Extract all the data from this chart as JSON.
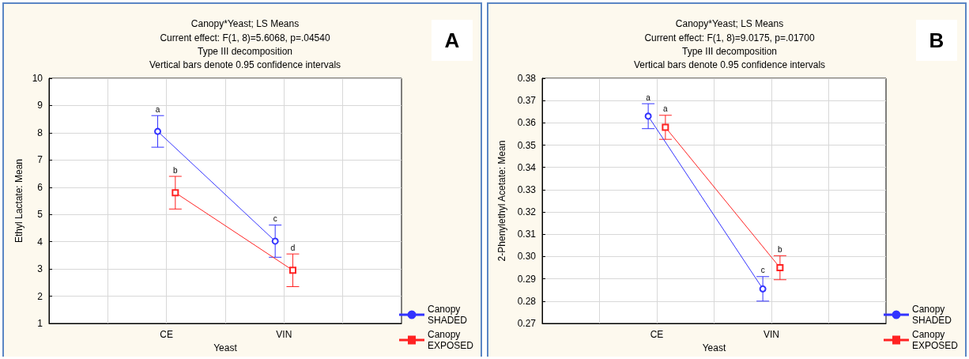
{
  "chart_data": [
    {
      "type": "line",
      "title": "Canopy*Yeast; LS Means",
      "subtitle": "Current effect: F(1, 8)=5.6068, p=.04540\nType III decomposition\nVertical bars denote 0.95 confidence intervals",
      "xlabel": "Yeast",
      "ylabel": "Ethyl Lactate: Mean",
      "categories": [
        "CE",
        "VIN"
      ],
      "series": [
        {
          "name": "Canopy SHADED",
          "color": "#3333ff",
          "marker": "circle",
          "values": [
            8.05,
            4.02
          ],
          "errors": [
            0.58,
            0.59
          ]
        },
        {
          "name": "Canopy EXPOSED",
          "color": "#ff2222",
          "marker": "square",
          "values": [
            5.8,
            2.95
          ],
          "errors": [
            0.6,
            0.6
          ]
        }
      ],
      "ylim": [
        1,
        10
      ],
      "yticks": [
        1,
        2,
        3,
        4,
        5,
        6,
        7,
        8,
        9,
        10
      ],
      "grid": true,
      "legend": "bottom right",
      "line_style": "solid",
      "annotations": [
        "A",
        {
          "text": "a",
          "x": "CE",
          "y": 8.63
        },
        {
          "text": "b",
          "x": "CE",
          "y": 6.4
        },
        {
          "text": "c",
          "x": "VIN",
          "y": 4.61
        },
        {
          "text": "d",
          "x": "VIN",
          "y": 3.55
        }
      ]
    },
    {
      "type": "line",
      "title": "Canopy*Yeast; LS Means",
      "subtitle": "Current effect: F(1, 8)=9.0175, p=.01700\nType III decomposition\nVertical bars denote 0.95 confidence intervals",
      "xlabel": "Yeast",
      "ylabel": "2-Phenylethyl Acetate: Mean",
      "categories": [
        "CE",
        "VIN"
      ],
      "series": [
        {
          "name": "Canopy SHADED",
          "color": "#3333ff",
          "marker": "circle",
          "values": [
            0.363,
            0.2855
          ],
          "errors": [
            0.0056,
            0.0055
          ]
        },
        {
          "name": "Canopy EXPOSED",
          "color": "#ff2222",
          "marker": "square",
          "values": [
            0.358,
            0.295
          ],
          "errors": [
            0.0054,
            0.0054
          ]
        }
      ],
      "ylim": [
        0.27,
        0.38
      ],
      "yticks": [
        {
          "value": 0.27,
          "label": "0.27"
        },
        {
          "value": 0.28,
          "label": "0.28"
        },
        {
          "value": 0.29,
          "label": "0.29"
        },
        {
          "value": 0.3,
          "label": "0.30"
        },
        {
          "value": 0.31,
          "label": "0.31"
        },
        {
          "value": 0.32,
          "label": "0.32"
        },
        {
          "value": 0.33,
          "label": "0.33"
        },
        {
          "value": 0.34,
          "label": "0.34"
        },
        {
          "value": 0.35,
          "label": "0.35"
        },
        {
          "value": 0.36,
          "label": "0.36"
        },
        {
          "value": 0.37,
          "label": "0.37"
        },
        {
          "value": 0.38,
          "label": "0.38"
        }
      ],
      "grid": true,
      "legend": "bottom right",
      "line_style": "solid",
      "annotations": [
        "B",
        {
          "text": "a",
          "x": "CE",
          "y": 0.3686
        },
        {
          "text": "a",
          "x": "CE",
          "y": 0.3634
        },
        {
          "text": "c",
          "x": "VIN",
          "y": 0.291
        },
        {
          "text": "b",
          "x": "VIN",
          "y": 0.3004
        }
      ]
    }
  ]
}
